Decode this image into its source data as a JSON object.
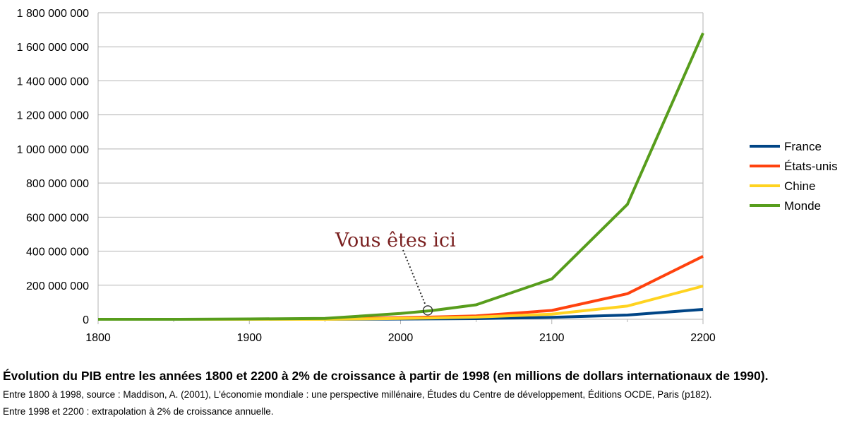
{
  "chart_data": {
    "type": "line",
    "title": "",
    "xlabel": "",
    "ylabel": "",
    "x": [
      1800,
      1850,
      1900,
      1950,
      2000,
      2020,
      2050,
      2100,
      2150,
      2200
    ],
    "xticks": [
      "1800",
      "1900",
      "2000",
      "2100",
      "2200"
    ],
    "xlim": [
      1800,
      2200
    ],
    "ylim": [
      0,
      1800000000
    ],
    "yticks": [
      "0",
      "200 000 000",
      "400 000 000",
      "600 000 000",
      "800 000 000",
      "1 000 000 000",
      "1 200 000 000",
      "1 400 000 000",
      "1 600 000 000",
      "1 800 000 000"
    ],
    "grid": "horizontal",
    "legend_position": "right",
    "series": [
      {
        "name": "France",
        "color": "#004586",
        "values": [
          0,
          0,
          0,
          0,
          1500000,
          2300000,
          4200000,
          11000000,
          25000000,
          58000000
        ]
      },
      {
        "name": "États-unis",
        "color": "#ff420e",
        "values": [
          0,
          0,
          0,
          1500000,
          9000000,
          13000000,
          20000000,
          52000000,
          150000000,
          370000000
        ]
      },
      {
        "name": "Chine",
        "color": "#ffd320",
        "values": [
          0,
          0,
          0,
          0,
          5000000,
          8000000,
          13000000,
          30000000,
          78000000,
          195000000
        ]
      },
      {
        "name": "Monde",
        "color": "#579d1c",
        "values": [
          0,
          0,
          2000000,
          5000000,
          34000000,
          50000000,
          85000000,
          237000000,
          675000000,
          1680000000
        ]
      }
    ],
    "annotation": {
      "text": "Vous êtes ici",
      "x": 2018,
      "y": 52000000,
      "color": "#7a2020"
    }
  },
  "caption": {
    "title": "Évolution du PIB entre les années 1800 et 2200 à 2% de croissance à partir de 1998 (en millions de dollars internationaux de 1990).",
    "line1": "Entre 1800 à 1998, source : Maddison, A. (2001), L'économie mondiale : une perspective millénaire, Études du Centre de développement, Éditions OCDE, Paris (p182).",
    "line2": "Entre 1998 et 2200 : extrapolation à 2% de croissance annuelle."
  }
}
